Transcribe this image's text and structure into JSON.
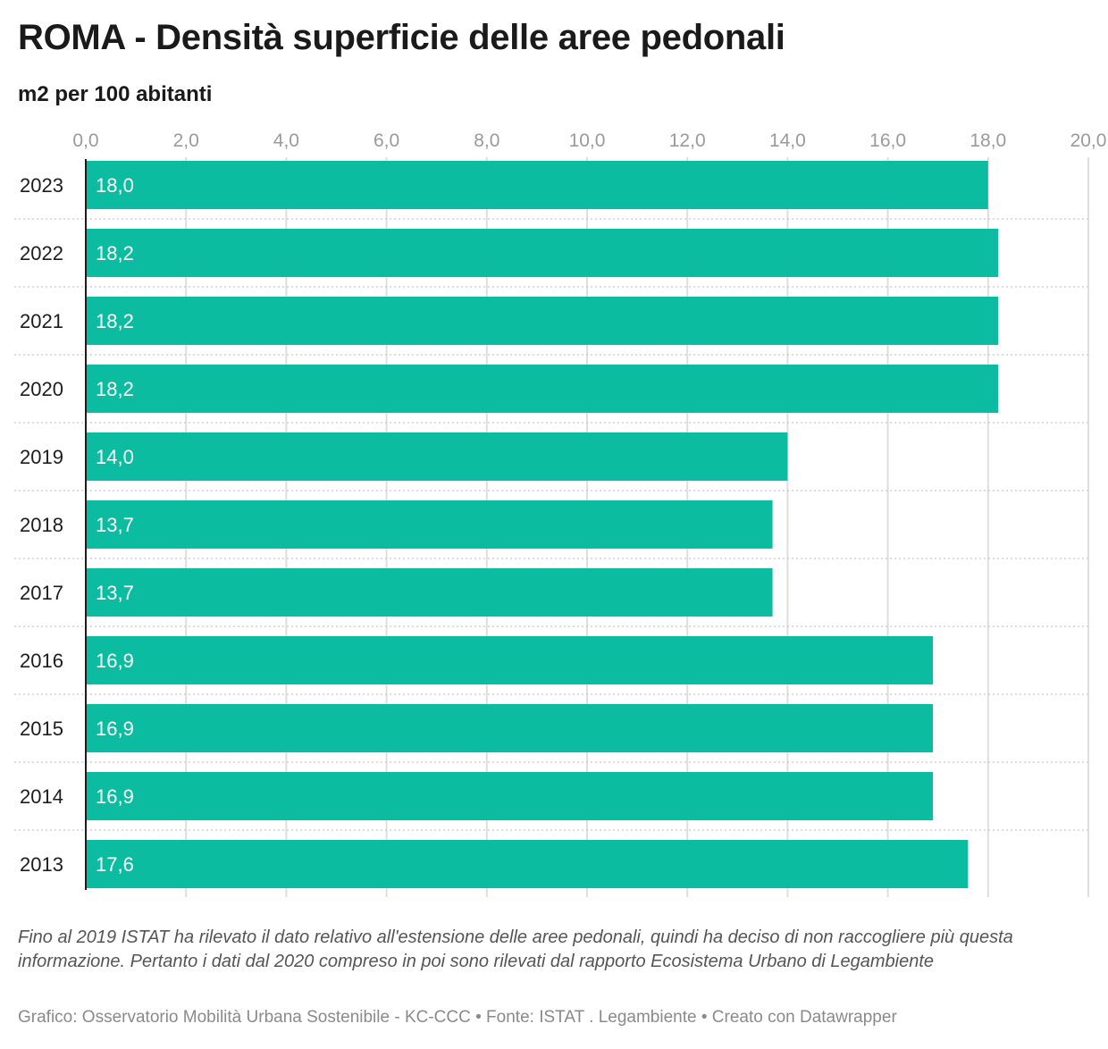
{
  "header": {
    "title": "ROMA - Densità superficie delle aree pedonali",
    "subtitle": "m2 per 100 abitanti"
  },
  "chart_data": {
    "type": "bar",
    "orientation": "horizontal",
    "title": "ROMA - Densità superficie delle aree pedonali",
    "subtitle": "m2 per 100 abitanti",
    "categories": [
      "2023",
      "2022",
      "2021",
      "2020",
      "2019",
      "2018",
      "2017",
      "2016",
      "2015",
      "2014",
      "2013"
    ],
    "values": [
      18.0,
      18.2,
      18.2,
      18.2,
      14.0,
      13.7,
      13.7,
      16.9,
      16.9,
      16.9,
      17.6
    ],
    "value_labels": [
      "18,0",
      "18,2",
      "18,2",
      "18,2",
      "14,0",
      "13,7",
      "13,7",
      "16,9",
      "16,9",
      "16,9",
      "17,6"
    ],
    "xlim": [
      0,
      20
    ],
    "x_ticks": [
      0,
      2,
      4,
      6,
      8,
      10,
      12,
      14,
      16,
      18,
      20
    ],
    "x_tick_labels": [
      "0,0",
      "2,0",
      "4,0",
      "6,0",
      "8,0",
      "10,0",
      "12,0",
      "14,0",
      "16,0",
      "18,0",
      "20,0"
    ],
    "axis_position": "top",
    "grid": true,
    "bar_color": "#0bbca0"
  },
  "note": "Fino al 2019 ISTAT ha rilevato il dato relativo all'estensione delle aree pedonali, quindi ha deciso di non raccogliere più questa informazione. Pertanto i dati dal 2020 compreso in poi sono rilevati dal rapporto Ecosistema Urbano di Legambiente",
  "footer": "Grafico: Osservatorio Mobilità Urbana Sostenibile - KC-CCC • Fonte: ISTAT . Legambiente • Creato con Datawrapper"
}
